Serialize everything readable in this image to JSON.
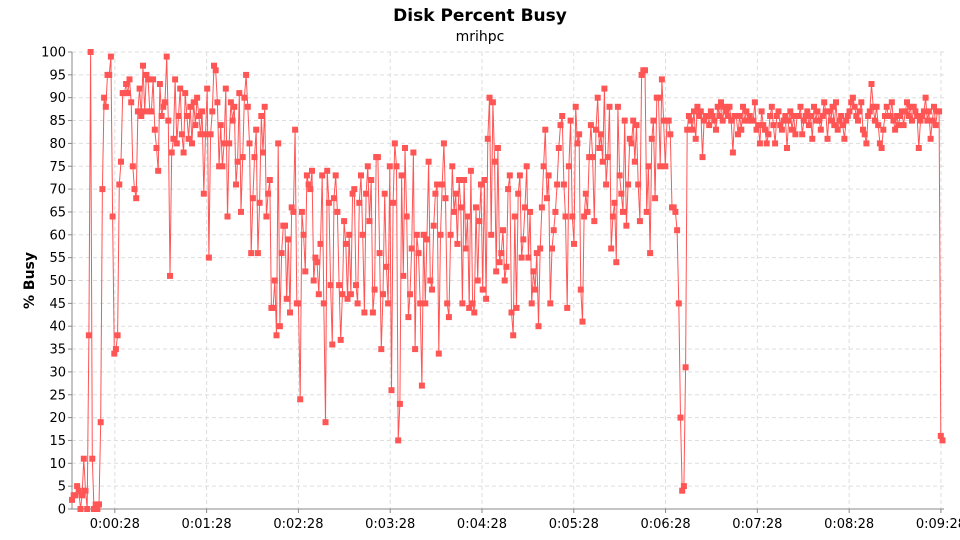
{
  "chart_data": {
    "type": "line",
    "title": "Disk Percent Busy",
    "subtitle": "mrihpc",
    "xlabel": "",
    "ylabel": "% Busy",
    "ylim": [
      0,
      100
    ],
    "y_ticks": [
      0,
      5,
      10,
      15,
      20,
      25,
      30,
      35,
      40,
      45,
      50,
      55,
      60,
      65,
      70,
      75,
      80,
      85,
      90,
      95,
      100
    ],
    "x_tick_labels": [
      "0:00:28",
      "0:01:28",
      "0:02:28",
      "0:03:28",
      "0:04:28",
      "0:05:28",
      "0:06:28",
      "0:07:28",
      "0:08:28",
      "0:09:28"
    ],
    "x_tick_seconds": [
      28,
      88,
      148,
      208,
      268,
      328,
      388,
      448,
      508,
      568
    ],
    "xlim_seconds": [
      0,
      570
    ],
    "grid": true,
    "series_color": "#ff5555",
    "series": [
      {
        "values": [
          2,
          3,
          3,
          5,
          4,
          0,
          3,
          11,
          4,
          0,
          38,
          100,
          11,
          0,
          1,
          0,
          1,
          19,
          70,
          90,
          88,
          95,
          95,
          99,
          64,
          34,
          35,
          38,
          71,
          76,
          91,
          91,
          93,
          91,
          94,
          89,
          75,
          70,
          68,
          87,
          92,
          86,
          97,
          87,
          95,
          94,
          87,
          87,
          94,
          83,
          79,
          74,
          93,
          86,
          88,
          89,
          99,
          85,
          51,
          78,
          81,
          94,
          80,
          86,
          92,
          82,
          78,
          91,
          86,
          81,
          88,
          80,
          89,
          84,
          90,
          86,
          82,
          87,
          69,
          82,
          92,
          55,
          82,
          87,
          97,
          96,
          89,
          75,
          84,
          75,
          80,
          92,
          64,
          80,
          89,
          85,
          88,
          71,
          76,
          91,
          65,
          77,
          90,
          95,
          88,
          80,
          56,
          68,
          77,
          83,
          56,
          67,
          86,
          78,
          88,
          64,
          69,
          72,
          44,
          44,
          50,
          38,
          80,
          40,
          56,
          62,
          62,
          46,
          59,
          43,
          66,
          65,
          83,
          45,
          45,
          24,
          65,
          60,
          52,
          73,
          71,
          70,
          74,
          50,
          55,
          54,
          47,
          58,
          73,
          45,
          19,
          74,
          67,
          49,
          36,
          68,
          73,
          65,
          49,
          37,
          47,
          63,
          58,
          46,
          60,
          47,
          69,
          70,
          49,
          45,
          67,
          73,
          60,
          43,
          69,
          75,
          63,
          72,
          43,
          48,
          77,
          77,
          56,
          35,
          47,
          69,
          53,
          45,
          75,
          26,
          67,
          80,
          75,
          15,
          23,
          73,
          51,
          79,
          64,
          42,
          47,
          57,
          78,
          35,
          60,
          56,
          45,
          27,
          60,
          45,
          59,
          76,
          50,
          48,
          62,
          69,
          71,
          34,
          60,
          71,
          80,
          68,
          45,
          42,
          60,
          75,
          65,
          69,
          58,
          72,
          66,
          45,
          72,
          57,
          64,
          44,
          74,
          45,
          43,
          66,
          50,
          63,
          71,
          48,
          72,
          46,
          81,
          90,
          60,
          89,
          76,
          52,
          79,
          54,
          56,
          61,
          50,
          53,
          70,
          73,
          43,
          38,
          64,
          44,
          69,
          73,
          55,
          59,
          66,
          75,
          55,
          65,
          45,
          52,
          48,
          56,
          40,
          57,
          66,
          75,
          83,
          68,
          73,
          45,
          57,
          61,
          65,
          71,
          79,
          84,
          86,
          71,
          64,
          44,
          75,
          85,
          64,
          58,
          88,
          80,
          82,
          48,
          41,
          64,
          69,
          65,
          77,
          84,
          77,
          63,
          83,
          90,
          79,
          82,
          76,
          92,
          71,
          77,
          88,
          57,
          64,
          67,
          54,
          88,
          73,
          69,
          65,
          85,
          62,
          71,
          81,
          80,
          85,
          76,
          84,
          71,
          63,
          95,
          96,
          96,
          65,
          75,
          56,
          81,
          85,
          68,
          90,
          90,
          75,
          94,
          85,
          75,
          85,
          85,
          82,
          66,
          66,
          65,
          61,
          45,
          20,
          4,
          5,
          31,
          83,
          86,
          85,
          83,
          87,
          81,
          88,
          86,
          87,
          77,
          85,
          86,
          86,
          84,
          87,
          86,
          85,
          83,
          88,
          86,
          89,
          85,
          88,
          87,
          86,
          88,
          85,
          78,
          86,
          86,
          82,
          86,
          83,
          88,
          85,
          87,
          85,
          86,
          85,
          85,
          89,
          83,
          84,
          80,
          87,
          84,
          83,
          80,
          82,
          86,
          88,
          84,
          80,
          86,
          87,
          84,
          83,
          85,
          86,
          79,
          85,
          87,
          83,
          86,
          82,
          86,
          86,
          88,
          82,
          85,
          86,
          87,
          84,
          86,
          81,
          88,
          85,
          87,
          85,
          83,
          86,
          89,
          87,
          81,
          87,
          85,
          88,
          84,
          89,
          83,
          85,
          86,
          84,
          81,
          85,
          86,
          87,
          89,
          90,
          88,
          86,
          85,
          87,
          89,
          83,
          82,
          80,
          86,
          87,
          93,
          88,
          85,
          88,
          84,
          80,
          79,
          83,
          86,
          88,
          86,
          86,
          89,
          85,
          83,
          86,
          84,
          86,
          87,
          84,
          87,
          89,
          86,
          88,
          85,
          88,
          87,
          86,
          79,
          85,
          86,
          87,
          90,
          85,
          87,
          81,
          85,
          88,
          84,
          87,
          87,
          16,
          15
        ]
      }
    ]
  }
}
